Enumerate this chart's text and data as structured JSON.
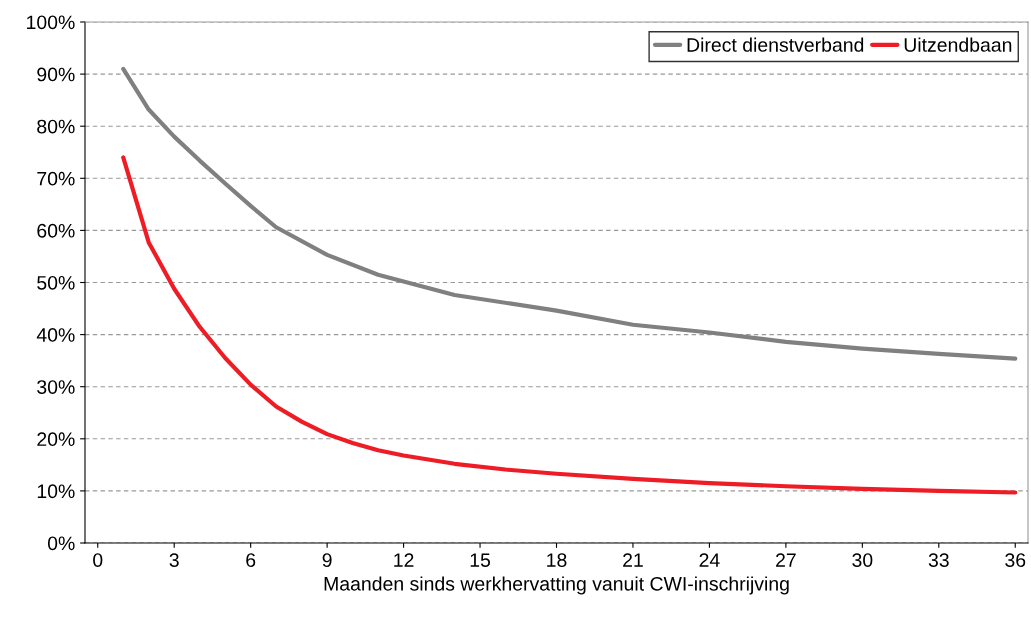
{
  "chart_data": {
    "type": "line",
    "xlabel": "Maanden sinds werkhervatting vanuit CWI-inschrijving",
    "xlim": [
      -0.5,
      36.5
    ],
    "xticks": [
      0,
      3,
      6,
      9,
      12,
      15,
      18,
      21,
      24,
      27,
      30,
      33,
      36
    ],
    "ylim": [
      0,
      100
    ],
    "yticks": [
      {
        "value": 0,
        "label": "0%"
      },
      {
        "value": 10,
        "label": "10%"
      },
      {
        "value": 20,
        "label": "20%"
      },
      {
        "value": 30,
        "label": "30%"
      },
      {
        "value": 40,
        "label": "40%"
      },
      {
        "value": 50,
        "label": "50%"
      },
      {
        "value": 60,
        "label": "60%"
      },
      {
        "value": 70,
        "label": "70%"
      },
      {
        "value": 80,
        "label": "80%"
      },
      {
        "value": 90,
        "label": "90%"
      },
      {
        "value": 100,
        "label": "100%"
      }
    ],
    "grid": "y",
    "legend": "top right",
    "marker": "none",
    "line_style": "solid",
    "series": [
      {
        "name": "Direct dienstverband",
        "color": "#808080",
        "x": [
          1,
          2,
          3,
          4,
          5,
          6,
          7,
          9,
          11,
          12,
          14,
          18,
          21,
          24,
          27,
          30,
          33,
          36
        ],
        "values": [
          91,
          83.2,
          78,
          73.4,
          69,
          64.7,
          60.6,
          55.3,
          51.5,
          50.2,
          47.6,
          44.6,
          41.9,
          40.4,
          38.6,
          37.3,
          36.3,
          35.4
        ]
      },
      {
        "name": "Uitzendbaan",
        "color": "#ee1c25",
        "x": [
          1,
          2,
          3,
          4,
          5,
          6,
          7,
          8,
          9,
          10,
          11,
          12,
          14,
          16,
          18,
          21,
          24,
          27,
          30,
          33,
          36
        ],
        "values": [
          74,
          57.7,
          48.8,
          41.5,
          35.5,
          30.4,
          26.2,
          23.3,
          20.9,
          19.2,
          17.8,
          16.8,
          15.2,
          14.1,
          13.3,
          12.3,
          11.5,
          10.9,
          10.4,
          10.0,
          9.7
        ]
      }
    ]
  }
}
